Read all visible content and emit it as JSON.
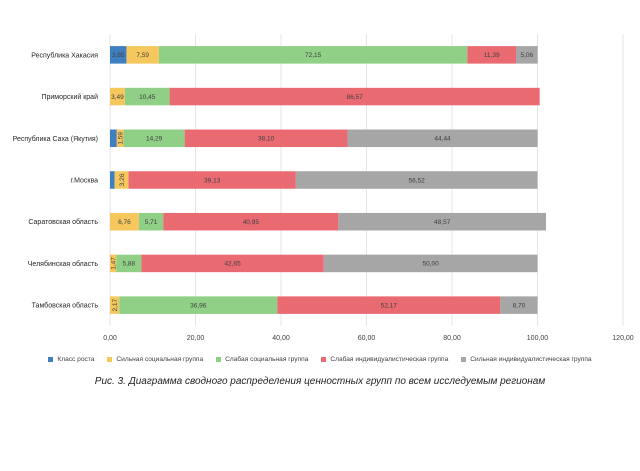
{
  "chart_data": {
    "type": "bar",
    "orientation": "horizontal",
    "stacked": true,
    "categories": [
      "Республика Хакасия",
      "Приморский край",
      "Республика Саха (Якутия)",
      "г.Москва",
      "Саратовская область",
      "Челябинская область",
      "Тамбовская область"
    ],
    "series": [
      {
        "name": "Класс роста",
        "color": "#3f7fbf",
        "values": [
          3.85,
          0.0,
          1.59,
          1.08,
          0.0,
          0.0,
          0.0
        ],
        "labels": [
          "3,85",
          "",
          "",
          "",
          "",
          "",
          ""
        ]
      },
      {
        "name": "Сильная социальная группа",
        "color": "#f5c75d",
        "values": [
          7.59,
          3.49,
          1.59,
          3.26,
          6.76,
          1.47,
          2.17
        ],
        "labels": [
          "7,59",
          "3,49",
          "1,59",
          "3,26",
          "6,76",
          "1,47",
          "2,17"
        ]
      },
      {
        "name": "Слабая социальная группа",
        "color": "#8fcf86",
        "values": [
          72.15,
          10.45,
          14.29,
          0.0,
          5.71,
          5.88,
          36.96
        ],
        "labels": [
          "72,15",
          "10,45",
          "14,29",
          "",
          "5,71",
          "5,88",
          "36,96"
        ]
      },
      {
        "name": "Слабая индивидуалистическая группа",
        "color": "#ea6a72",
        "values": [
          11.39,
          86.57,
          38.1,
          39.13,
          40.95,
          42.65,
          52.17
        ],
        "labels": [
          "11,39",
          "86,57",
          "38,10",
          "39,13",
          "40,95",
          "42,65",
          "52,17"
        ]
      },
      {
        "name": "Сильная индивидуалистическая группа",
        "color": "#a6a6a6",
        "values": [
          5.06,
          0.0,
          44.44,
          56.52,
          48.57,
          50.0,
          8.7
        ],
        "labels": [
          "5,06",
          "",
          "44,44",
          "56,52",
          "48,57",
          "50,00",
          "8,70"
        ]
      }
    ],
    "xlim": [
      0,
      120
    ],
    "x_ticks": [
      "0,00",
      "20,00",
      "40,00",
      "60,00",
      "80,00",
      "100,00",
      "120,00"
    ],
    "grid": true,
    "legend_position": "bottom"
  },
  "caption": {
    "label": "Рис. 3.",
    "text": "Диаграмма сводного распределения ценностных групп по всем исследуемым регионам"
  }
}
